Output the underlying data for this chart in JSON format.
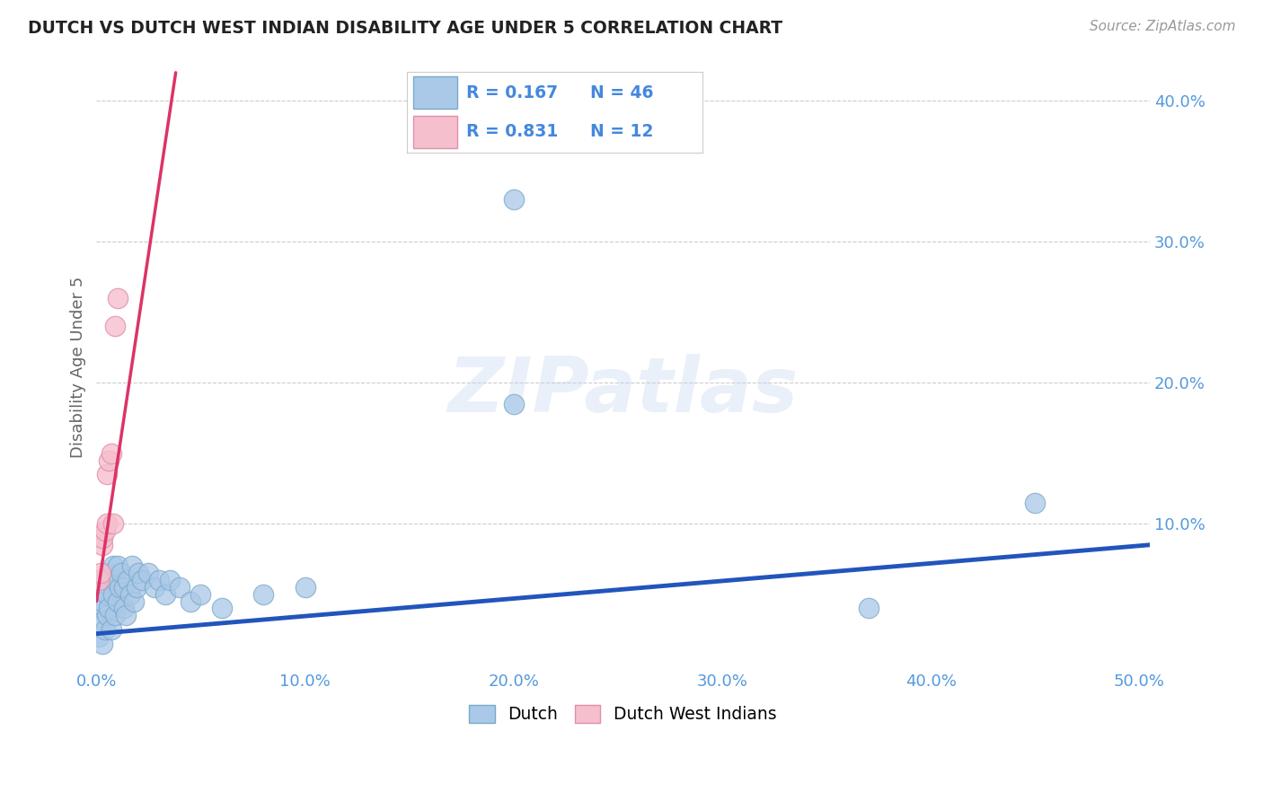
{
  "title": "DUTCH VS DUTCH WEST INDIAN DISABILITY AGE UNDER 5 CORRELATION CHART",
  "source": "Source: ZipAtlas.com",
  "ylabel": "Disability Age Under 5",
  "watermark": "ZIPatlas",
  "xlim": [
    0.0,
    0.505
  ],
  "ylim": [
    -0.003,
    0.425
  ],
  "xticks": [
    0.0,
    0.1,
    0.2,
    0.3,
    0.4,
    0.5
  ],
  "yticks": [
    0.1,
    0.2,
    0.3,
    0.4
  ],
  "title_color": "#222222",
  "source_color": "#999999",
  "axis_label_color": "#666666",
  "tick_color": "#5599dd",
  "grid_color": "#cccccc",
  "dutch_fill": "#aac8e8",
  "dutch_edge": "#7aaac8",
  "dwi_fill": "#f5bfce",
  "dwi_edge": "#e090a8",
  "line_dutch": "#2255bb",
  "line_dwi": "#dd3366",
  "legend_text": "#4488dd",
  "R_dutch": "0.167",
  "N_dutch": "46",
  "R_dwi": "0.831",
  "N_dwi": "12",
  "bg": "#ffffff",
  "dutch_x": [
    0.001,
    0.001,
    0.002,
    0.002,
    0.003,
    0.003,
    0.004,
    0.004,
    0.005,
    0.005,
    0.006,
    0.006,
    0.007,
    0.008,
    0.008,
    0.009,
    0.009,
    0.01,
    0.01,
    0.011,
    0.012,
    0.013,
    0.013,
    0.014,
    0.015,
    0.016,
    0.017,
    0.018,
    0.019,
    0.02,
    0.022,
    0.025,
    0.028,
    0.03,
    0.033,
    0.035,
    0.04,
    0.045,
    0.05,
    0.06,
    0.08,
    0.1,
    0.2,
    0.2,
    0.37,
    0.45
  ],
  "dutch_y": [
    0.02,
    0.04,
    0.03,
    0.055,
    0.015,
    0.045,
    0.025,
    0.06,
    0.035,
    0.05,
    0.04,
    0.065,
    0.025,
    0.05,
    0.07,
    0.035,
    0.06,
    0.045,
    0.07,
    0.055,
    0.065,
    0.04,
    0.055,
    0.035,
    0.06,
    0.05,
    0.07,
    0.045,
    0.055,
    0.065,
    0.06,
    0.065,
    0.055,
    0.06,
    0.05,
    0.06,
    0.055,
    0.045,
    0.05,
    0.04,
    0.05,
    0.055,
    0.33,
    0.185,
    0.04,
    0.115
  ],
  "dwi_x": [
    0.001,
    0.002,
    0.003,
    0.003,
    0.004,
    0.005,
    0.005,
    0.006,
    0.007,
    0.008,
    0.009,
    0.01
  ],
  "dwi_y": [
    0.06,
    0.065,
    0.085,
    0.09,
    0.095,
    0.1,
    0.135,
    0.145,
    0.15,
    0.1,
    0.24,
    0.26
  ],
  "dwi_line_x0": 0.0,
  "dwi_line_y0": 0.045,
  "dwi_line_x1": 0.038,
  "dwi_line_y1": 0.42,
  "dutch_line_x0": 0.0,
  "dutch_line_y0": 0.022,
  "dutch_line_x1": 0.505,
  "dutch_line_y1": 0.085
}
